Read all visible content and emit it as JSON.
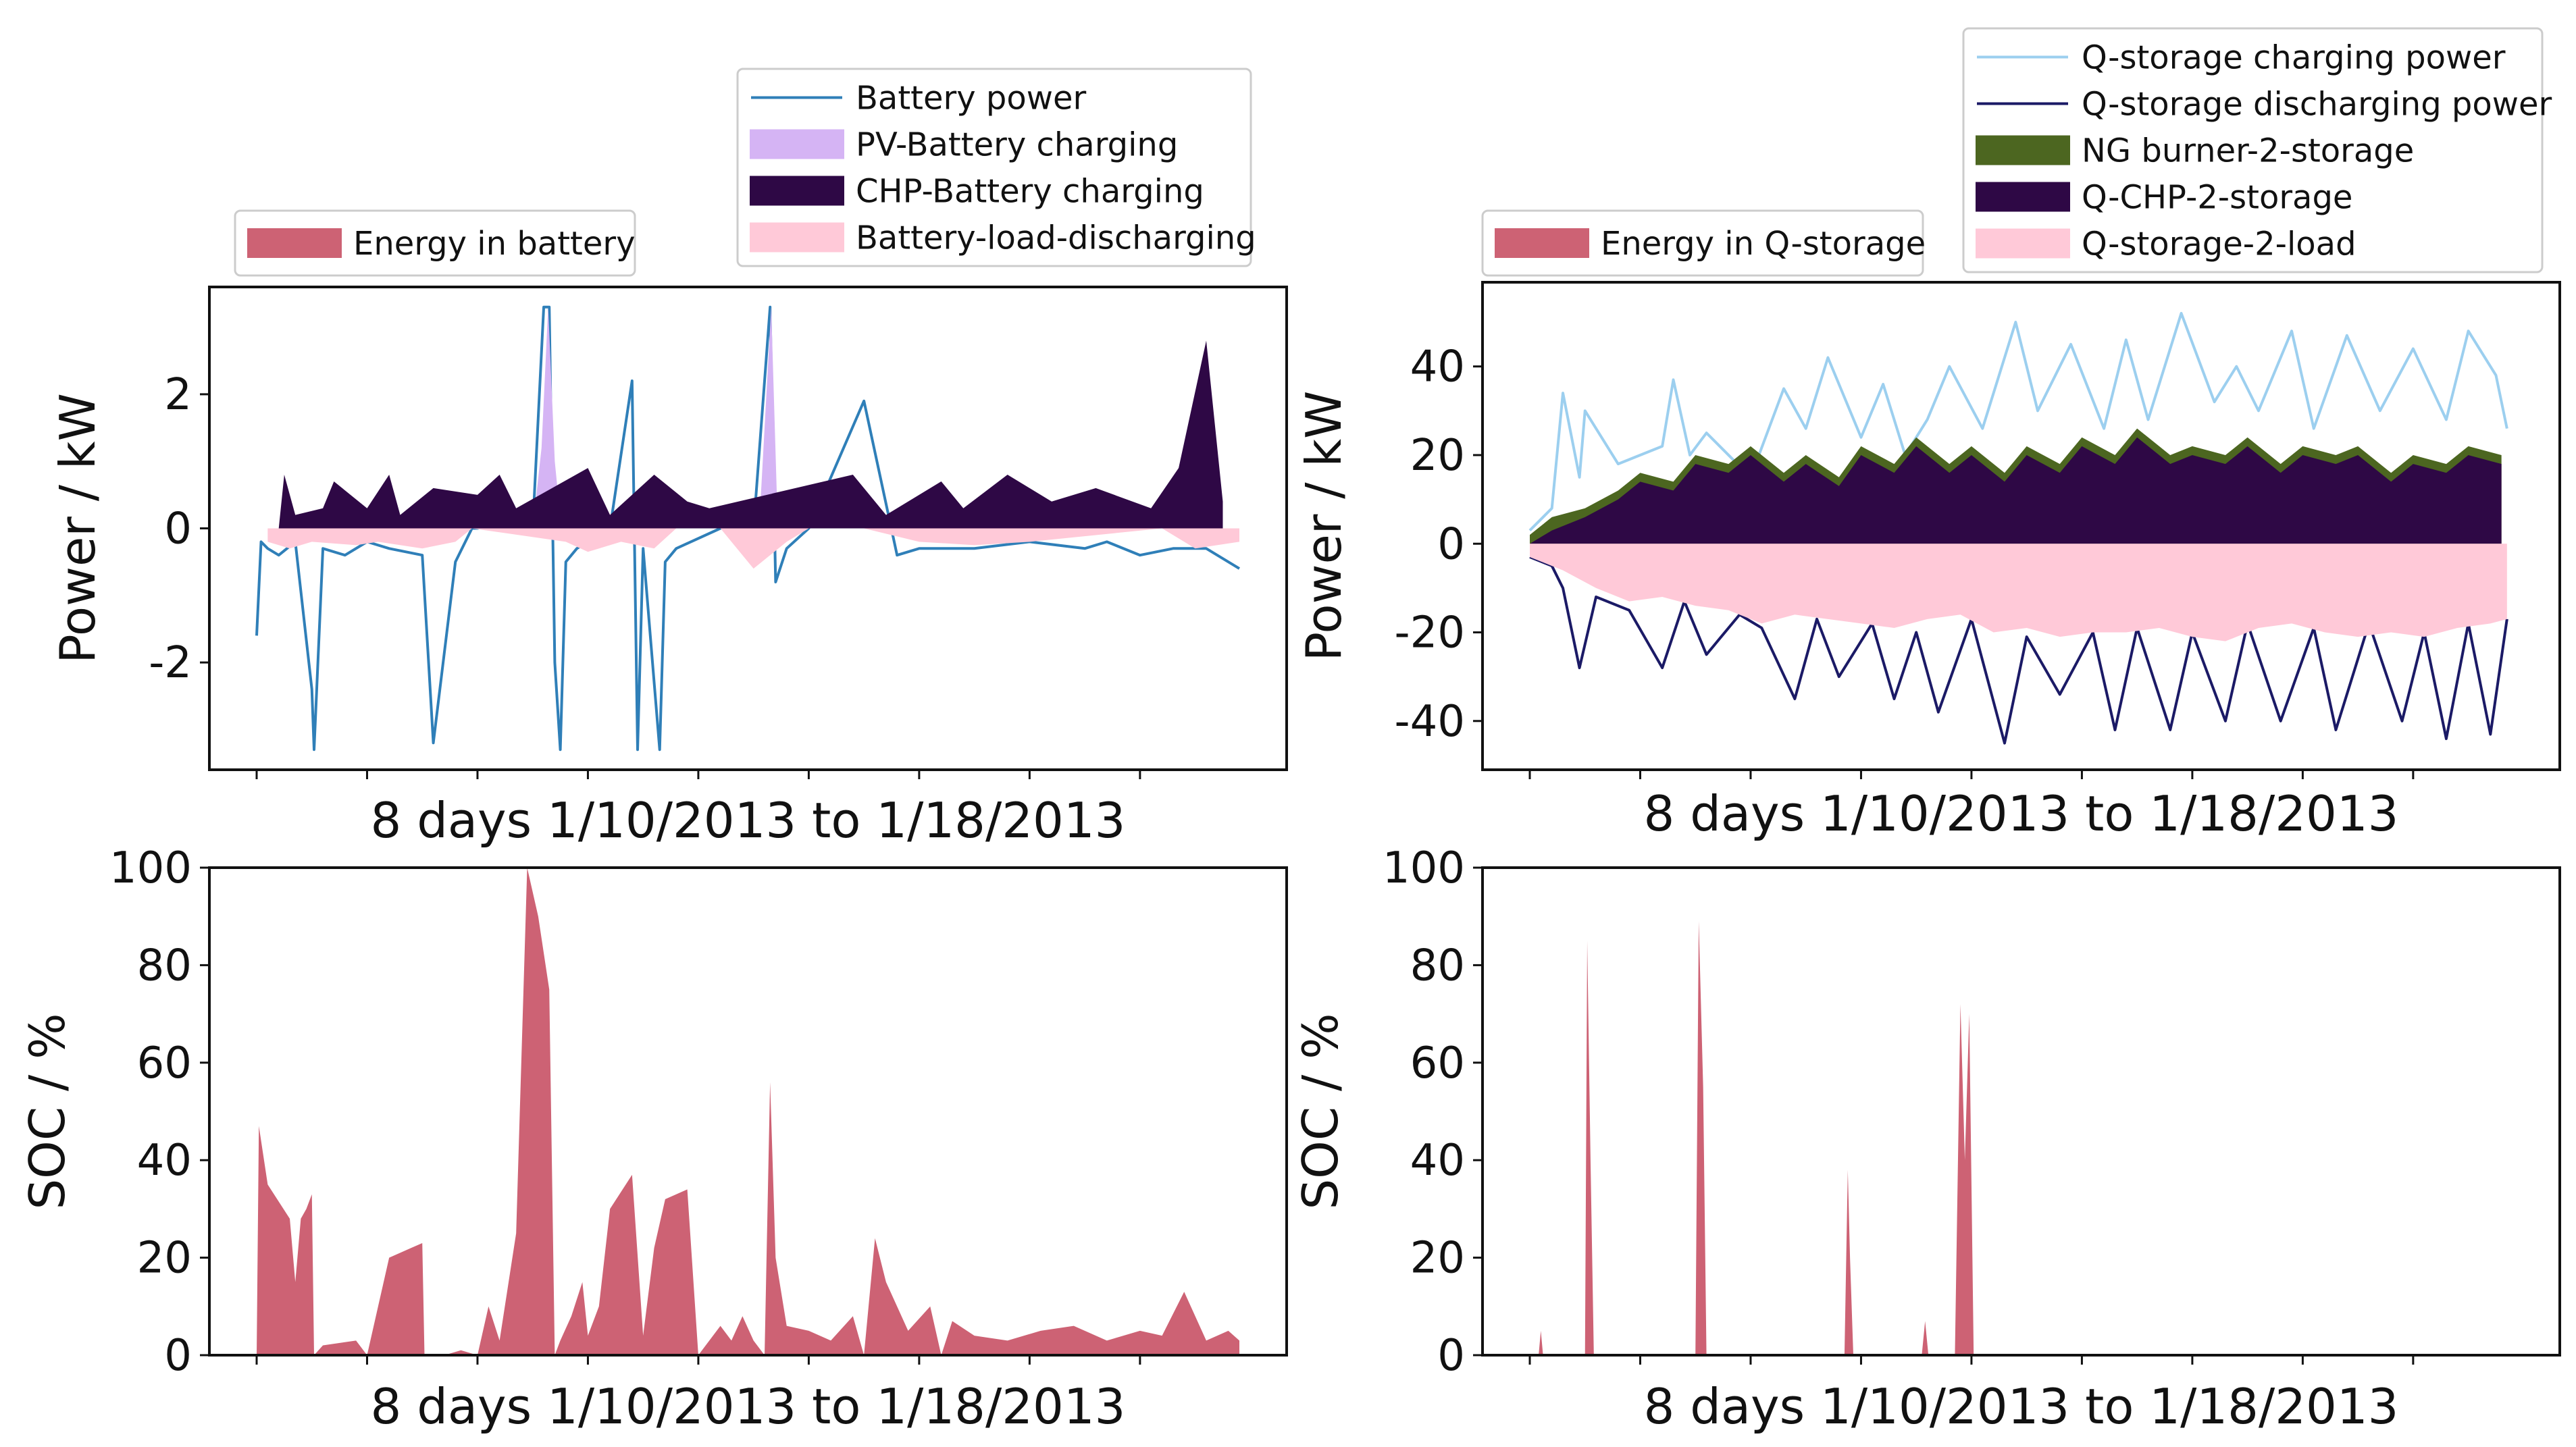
{
  "chart_data": [
    {
      "type": "area",
      "id": "battery-power",
      "title": "",
      "xlabel": "8 days 1/10/2013 to 1/18/2013",
      "ylabel": "Power / kW",
      "ylim": [
        -3.6,
        3.6
      ],
      "yticks": [
        -2,
        0,
        2
      ],
      "xlim": [
        0,
        8.9
      ],
      "xticks": [
        0,
        1,
        2,
        3,
        4,
        5,
        6,
        7,
        8
      ],
      "legend_main": {
        "placement": "top-right",
        "entries": [
          {
            "label": "Battery power",
            "kind": "line",
            "color": "#2f7fb8"
          },
          {
            "label": "PV-Battery charging",
            "kind": "patch",
            "color": "#d5b4f4"
          },
          {
            "label": "CHP-Battery charging",
            "kind": "patch",
            "color": "#2e0845"
          },
          {
            "label": "Battery-load-discharging",
            "kind": "patch",
            "color": "#ffc9d8"
          }
        ]
      },
      "legend_secondary": {
        "placement": "top-left",
        "entries": [
          {
            "label": "Energy in battery",
            "kind": "patch",
            "color": "#cd6274"
          }
        ]
      },
      "series": [
        {
          "name": "Battery power",
          "color": "#2f7fb8",
          "x": [
            0,
            0.04,
            0.1,
            0.2,
            0.35,
            0.5,
            0.52,
            0.6,
            0.8,
            1.0,
            1.2,
            1.5,
            1.6,
            1.8,
            1.95,
            2.0,
            2.3,
            2.5,
            2.6,
            2.65,
            2.7,
            2.75,
            2.8,
            2.9,
            3.2,
            3.4,
            3.45,
            3.5,
            3.65,
            3.7,
            3.8,
            4.2,
            4.5,
            4.65,
            4.7,
            4.8,
            5.0,
            5.5,
            5.8,
            6.0,
            6.5,
            7.0,
            7.5,
            7.7,
            8.0,
            8.3,
            8.6,
            8.9
          ],
          "values": [
            -1.6,
            -0.2,
            -0.3,
            -0.4,
            -0.2,
            -2.4,
            -3.3,
            -0.3,
            -0.4,
            -0.2,
            -0.3,
            -0.4,
            -3.2,
            -0.5,
            0.0,
            0.0,
            0.1,
            0.0,
            3.3,
            3.3,
            -2.0,
            -3.3,
            -0.5,
            -0.3,
            0.0,
            2.2,
            -3.3,
            -0.3,
            -3.3,
            -0.5,
            -0.3,
            0.0,
            0.0,
            3.3,
            -0.8,
            -0.3,
            0.0,
            1.9,
            -0.4,
            -0.3,
            -0.3,
            -0.2,
            -0.3,
            -0.2,
            -0.4,
            -0.3,
            -0.3,
            -0.6
          ]
        },
        {
          "name": "PV-Battery charging",
          "color": "#d5b4f4",
          "x": [
            2.5,
            2.58,
            2.64,
            2.7,
            2.76,
            4.55,
            4.62,
            4.66,
            4.72
          ],
          "values": [
            0,
            1.2,
            3.3,
            1.0,
            0,
            0,
            2.1,
            3.3,
            0
          ]
        },
        {
          "name": "CHP-Battery charging",
          "color": "#2e0845",
          "x": [
            0.2,
            0.25,
            0.35,
            0.6,
            0.7,
            1.0,
            1.2,
            1.3,
            1.6,
            2.0,
            2.2,
            2.35,
            3.0,
            3.2,
            3.6,
            3.9,
            4.1,
            5.4,
            5.7,
            6.2,
            6.4,
            6.8,
            7.2,
            7.6,
            8.1,
            8.35,
            8.6,
            8.75
          ],
          "values": [
            0,
            0.8,
            0.2,
            0.3,
            0.7,
            0.3,
            0.8,
            0.2,
            0.6,
            0.5,
            0.8,
            0.3,
            0.9,
            0.2,
            0.8,
            0.4,
            0.3,
            0.8,
            0.2,
            0.7,
            0.3,
            0.8,
            0.4,
            0.6,
            0.3,
            0.9,
            2.8,
            0.4
          ]
        },
        {
          "name": "Battery-load-discharging",
          "color": "#ffc9d8",
          "x": [
            0.1,
            0.3,
            0.5,
            0.9,
            1.1,
            1.5,
            1.8,
            1.95,
            2.8,
            3.0,
            3.3,
            3.6,
            3.8,
            4.2,
            4.5,
            4.8,
            5.0,
            5.5,
            6.0,
            6.5,
            7.0,
            8.2,
            8.5,
            8.9
          ],
          "values": [
            -0.2,
            -0.3,
            -0.2,
            -0.25,
            -0.2,
            -0.3,
            -0.2,
            0,
            -0.2,
            -0.35,
            -0.2,
            -0.3,
            0,
            0,
            -0.6,
            -0.2,
            0,
            0,
            -0.2,
            -0.25,
            -0.2,
            0,
            -0.3,
            -0.2
          ]
        }
      ]
    },
    {
      "type": "area",
      "id": "qstorage-power",
      "title": "",
      "xlabel": "8 days 1/10/2013 to 1/18/2013",
      "ylabel": "Power / kW",
      "ylim": [
        -51,
        59
      ],
      "yticks": [
        -40,
        -20,
        0,
        20,
        40
      ],
      "xlim": [
        0,
        8.9
      ],
      "xticks": [
        0,
        1,
        2,
        3,
        4,
        5,
        6,
        7,
        8
      ],
      "legend_main": {
        "placement": "top-right",
        "entries": [
          {
            "label": "Q-storage charging power",
            "kind": "line",
            "color": "#9ccfef"
          },
          {
            "label": "Q-storage discharging power",
            "kind": "line",
            "color": "#1b1a66"
          },
          {
            "label": "NG burner-2-storage",
            "kind": "patch",
            "color": "#4c6620"
          },
          {
            "label": "Q-CHP-2-storage",
            "kind": "patch",
            "color": "#2e0845"
          },
          {
            "label": "Q-storage-2-load",
            "kind": "patch",
            "color": "#ffc9d8"
          }
        ]
      },
      "legend_secondary": {
        "placement": "top-left",
        "entries": [
          {
            "label": "Energy in Q-storage",
            "kind": "patch",
            "color": "#cd6274"
          }
        ]
      },
      "series": [
        {
          "name": "Q-storage charging power",
          "color": "#9ccfef",
          "x": [
            0,
            0.2,
            0.3,
            0.45,
            0.5,
            0.8,
            1.2,
            1.3,
            1.45,
            1.6,
            2.0,
            2.3,
            2.5,
            2.7,
            3.0,
            3.2,
            3.4,
            3.6,
            3.8,
            4.1,
            4.4,
            4.6,
            4.9,
            5.2,
            5.4,
            5.6,
            5.9,
            6.2,
            6.4,
            6.6,
            6.9,
            7.1,
            7.4,
            7.7,
            8.0,
            8.3,
            8.5,
            8.75,
            8.85
          ],
          "values": [
            3,
            8,
            34,
            15,
            30,
            18,
            22,
            37,
            20,
            25,
            15,
            35,
            26,
            42,
            24,
            36,
            20,
            28,
            40,
            26,
            50,
            30,
            45,
            26,
            46,
            28,
            52,
            32,
            40,
            30,
            48,
            26,
            47,
            30,
            44,
            28,
            48,
            38,
            26
          ]
        },
        {
          "name": "Q-storage discharging power",
          "color": "#1b1a66",
          "x": [
            0,
            0.2,
            0.3,
            0.45,
            0.6,
            0.9,
            1.2,
            1.4,
            1.6,
            1.9,
            2.1,
            2.4,
            2.6,
            2.8,
            3.1,
            3.3,
            3.5,
            3.7,
            4.0,
            4.3,
            4.5,
            4.8,
            5.1,
            5.3,
            5.5,
            5.8,
            6.0,
            6.3,
            6.5,
            6.8,
            7.1,
            7.3,
            7.6,
            7.9,
            8.1,
            8.3,
            8.5,
            8.7,
            8.85
          ],
          "values": [
            -3,
            -5,
            -10,
            -28,
            -12,
            -15,
            -28,
            -13,
            -25,
            -16,
            -19,
            -35,
            -17,
            -30,
            -18,
            -35,
            -20,
            -38,
            -17,
            -45,
            -21,
            -34,
            -20,
            -42,
            -19,
            -42,
            -20,
            -40,
            -18,
            -40,
            -19,
            -42,
            -18,
            -40,
            -20,
            -44,
            -18,
            -43,
            -17
          ]
        },
        {
          "name": "NG burner-2-storage",
          "color": "#4c6620",
          "x": [
            0,
            0.2,
            0.5,
            0.8,
            1.0,
            1.3,
            1.5,
            1.8,
            2.0,
            2.3,
            2.5,
            2.8,
            3.0,
            3.3,
            3.5,
            3.8,
            4.0,
            4.3,
            4.5,
            4.8,
            5.0,
            5.3,
            5.5,
            5.8,
            6.0,
            6.3,
            6.5,
            6.8,
            7.0,
            7.3,
            7.5,
            7.8,
            8.0,
            8.3,
            8.5,
            8.8
          ],
          "values": [
            2,
            6,
            8,
            12,
            16,
            14,
            20,
            18,
            22,
            16,
            20,
            15,
            22,
            18,
            24,
            18,
            22,
            16,
            22,
            18,
            24,
            20,
            26,
            20,
            22,
            20,
            24,
            18,
            22,
            20,
            22,
            16,
            20,
            18,
            22,
            20
          ]
        },
        {
          "name": "Q-CHP-2-storage",
          "color": "#2e0845",
          "x": [
            0,
            0.2,
            0.5,
            0.8,
            1.0,
            1.3,
            1.5,
            1.8,
            2.0,
            2.3,
            2.5,
            2.8,
            3.0,
            3.3,
            3.5,
            3.8,
            4.0,
            4.3,
            4.5,
            4.8,
            5.0,
            5.3,
            5.5,
            5.8,
            6.0,
            6.3,
            6.5,
            6.8,
            7.0,
            7.3,
            7.5,
            7.8,
            8.0,
            8.3,
            8.5,
            8.8
          ],
          "values": [
            0,
            3,
            6,
            10,
            14,
            12,
            18,
            16,
            20,
            14,
            18,
            13,
            20,
            16,
            22,
            16,
            20,
            14,
            20,
            16,
            22,
            18,
            24,
            18,
            20,
            18,
            22,
            16,
            20,
            18,
            20,
            14,
            18,
            16,
            20,
            18
          ]
        },
        {
          "name": "Q-storage-2-load",
          "color": "#ffc9d8",
          "x": [
            0,
            0.3,
            0.6,
            0.9,
            1.2,
            1.5,
            1.8,
            2.1,
            2.4,
            2.7,
            3.0,
            3.3,
            3.6,
            3.9,
            4.2,
            4.5,
            4.8,
            5.1,
            5.4,
            5.7,
            6.0,
            6.3,
            6.6,
            6.9,
            7.2,
            7.5,
            7.8,
            8.1,
            8.4,
            8.7,
            8.85
          ],
          "values": [
            -3,
            -6,
            -10,
            -13,
            -12,
            -14,
            -15,
            -18,
            -16,
            -17,
            -18,
            -19,
            -17,
            -16,
            -20,
            -19,
            -21,
            -20,
            -20,
            -19,
            -21,
            -22,
            -19,
            -18,
            -20,
            -21,
            -20,
            -21,
            -19,
            -18,
            -17
          ]
        }
      ]
    },
    {
      "type": "area",
      "id": "battery-soc",
      "title": "",
      "xlabel": "8 days 1/10/2013 to 1/18/2013",
      "ylabel": "SOC / %",
      "ylim": [
        0,
        100
      ],
      "yticks": [
        0,
        20,
        40,
        60,
        80,
        100
      ],
      "xlim": [
        0,
        8.9
      ],
      "xticks": [
        0,
        1,
        2,
        3,
        4,
        5,
        6,
        7,
        8
      ],
      "series": [
        {
          "name": "Energy in battery",
          "color": "#cd6274",
          "x": [
            0,
            0.02,
            0.1,
            0.3,
            0.35,
            0.4,
            0.45,
            0.5,
            0.52,
            0.6,
            0.9,
            1.0,
            1.1,
            1.2,
            1.4,
            1.5,
            1.52,
            1.7,
            1.85,
            2.0,
            2.1,
            2.2,
            2.35,
            2.45,
            2.55,
            2.65,
            2.7,
            2.75,
            2.85,
            2.95,
            3.0,
            3.1,
            3.2,
            3.4,
            3.5,
            3.6,
            3.7,
            3.9,
            4.0,
            4.2,
            4.3,
            4.4,
            4.5,
            4.6,
            4.65,
            4.7,
            4.8,
            5.0,
            5.2,
            5.4,
            5.5,
            5.6,
            5.7,
            5.9,
            6.1,
            6.2,
            6.3,
            6.5,
            6.8,
            7.1,
            7.4,
            7.7,
            8.0,
            8.2,
            8.4,
            8.6,
            8.8,
            8.9
          ],
          "values": [
            0,
            47,
            35,
            28,
            15,
            28,
            30,
            33,
            0,
            2,
            3,
            0,
            10,
            20,
            22,
            23,
            0,
            0,
            1,
            0,
            10,
            3,
            25,
            100,
            90,
            75,
            0,
            3,
            8,
            15,
            4,
            10,
            30,
            37,
            4,
            22,
            32,
            34,
            0,
            6,
            3,
            8,
            3,
            0,
            56,
            20,
            6,
            5,
            3,
            8,
            0,
            24,
            15,
            5,
            10,
            0,
            7,
            4,
            3,
            5,
            6,
            3,
            5,
            4,
            13,
            3,
            5,
            3
          ]
        }
      ]
    },
    {
      "type": "area",
      "id": "qstorage-soc",
      "title": "",
      "xlabel": "8 days 1/10/2013 to 1/18/2013",
      "ylabel": "SOC / %",
      "ylim": [
        0,
        100
      ],
      "yticks": [
        0,
        20,
        40,
        60,
        80,
        100
      ],
      "xlim": [
        0,
        8.9
      ],
      "xticks": [
        0,
        1,
        2,
        3,
        4,
        5,
        6,
        7,
        8
      ],
      "series": [
        {
          "name": "Energy in Q-storage",
          "color": "#cd6274",
          "x": [
            0,
            0.08,
            0.1,
            0.12,
            0.5,
            0.52,
            0.55,
            0.58,
            1.5,
            1.53,
            1.57,
            1.6,
            2.85,
            2.88,
            2.9,
            2.93,
            3.55,
            3.58,
            3.61,
            3.85,
            3.9,
            3.94,
            3.98,
            4.02,
            8.9
          ],
          "values": [
            0,
            0,
            5,
            0,
            0,
            85,
            40,
            0,
            0,
            89,
            55,
            0,
            0,
            38,
            20,
            0,
            0,
            7,
            0,
            0,
            72,
            40,
            70,
            0,
            0
          ]
        }
      ]
    }
  ]
}
